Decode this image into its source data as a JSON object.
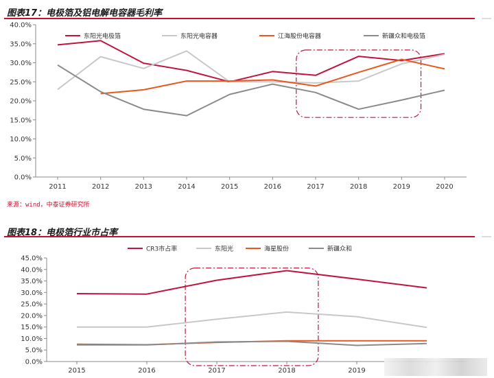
{
  "figure1": {
    "title": "图表17：电极箔及铝电解电容器毛利率",
    "source": "来源：wind，中泰证券研究所"
  },
  "figure2": {
    "title": "图表18：电极箔行业市占率"
  },
  "colors": {
    "accent_red": "#c8102e",
    "series_crimson": "#c0143c",
    "series_lightgray": "#c8c8c8",
    "series_orange": "#e8581c",
    "series_darkgray": "#8a8a8a"
  },
  "chart_data": [
    {
      "type": "line",
      "x": [
        "2011",
        "2012",
        "2013",
        "2014",
        "2015",
        "2016",
        "2017",
        "2018",
        "2019",
        "2020"
      ],
      "ylim": [
        0,
        40
      ],
      "ytick_labels": [
        "0.0%",
        "5.0%",
        "10.0%",
        "15.0%",
        "20.0%",
        "25.0%",
        "30.0%",
        "35.0%",
        "40.0%"
      ],
      "grid": false,
      "legend_position": "top",
      "highlight_box": {
        "x_from": "2017",
        "x_to": "2019",
        "y_from": 16,
        "y_to": 33,
        "style": "dash-dot"
      },
      "series": [
        {
          "name": "东阳光电极箔",
          "color": "#c0143c",
          "values": [
            34.7,
            35.8,
            29.9,
            28.0,
            25.0,
            27.7,
            26.7,
            31.7,
            30.6,
            32.4
          ]
        },
        {
          "name": "东阳光电容器",
          "color": "#c8c8c8",
          "values": [
            23.0,
            31.6,
            28.5,
            33.1,
            25.0,
            25.0,
            24.7,
            25.2,
            29.7,
            32.2
          ]
        },
        {
          "name": "江海股份电容器",
          "color": "#e8581c",
          "values": [
            null,
            21.9,
            22.9,
            25.2,
            25.2,
            25.5,
            23.9,
            27.5,
            30.9,
            28.4
          ]
        },
        {
          "name": "新疆众和电极箔",
          "color": "#8a8a8a",
          "values": [
            29.4,
            22.4,
            17.8,
            16.1,
            21.7,
            24.4,
            22.2,
            17.8,
            20.2,
            22.8
          ]
        }
      ]
    },
    {
      "type": "line",
      "x": [
        "2015",
        "2016",
        "2017",
        "2018",
        "2019",
        "2020"
      ],
      "x_tick_labels": [
        "2015",
        "2016",
        "2017",
        "2018",
        "2019",
        ""
      ],
      "ylim": [
        0,
        45
      ],
      "ytick_labels": [
        "0.0%",
        "5.0%",
        "10.0%",
        "15.0%",
        "20.0%",
        "25.0%",
        "30.0%",
        "35.0%",
        "40.0%",
        "45.0%"
      ],
      "grid": false,
      "legend_position": "top",
      "highlight_box": {
        "x_from": "2017",
        "x_to": "2018",
        "y_from": 0,
        "y_to": 40,
        "style": "dash-dot"
      },
      "series": [
        {
          "name": "CR3市占率",
          "color": "#c0143c",
          "values": [
            29.5,
            29.3,
            35.3,
            39.5,
            35.8,
            32.0
          ]
        },
        {
          "name": "东阳光",
          "color": "#c8c8c8",
          "values": [
            15.0,
            15.0,
            18.4,
            21.5,
            19.5,
            14.8
          ]
        },
        {
          "name": "海星股份",
          "color": "#e8581c",
          "values": [
            7.5,
            7.3,
            8.3,
            9.0,
            9.0,
            9.0
          ]
        },
        {
          "name": "新疆众和",
          "color": "#8a8a8a",
          "values": [
            7.2,
            7.2,
            8.5,
            8.8,
            7.0,
            7.8
          ]
        }
      ]
    }
  ]
}
